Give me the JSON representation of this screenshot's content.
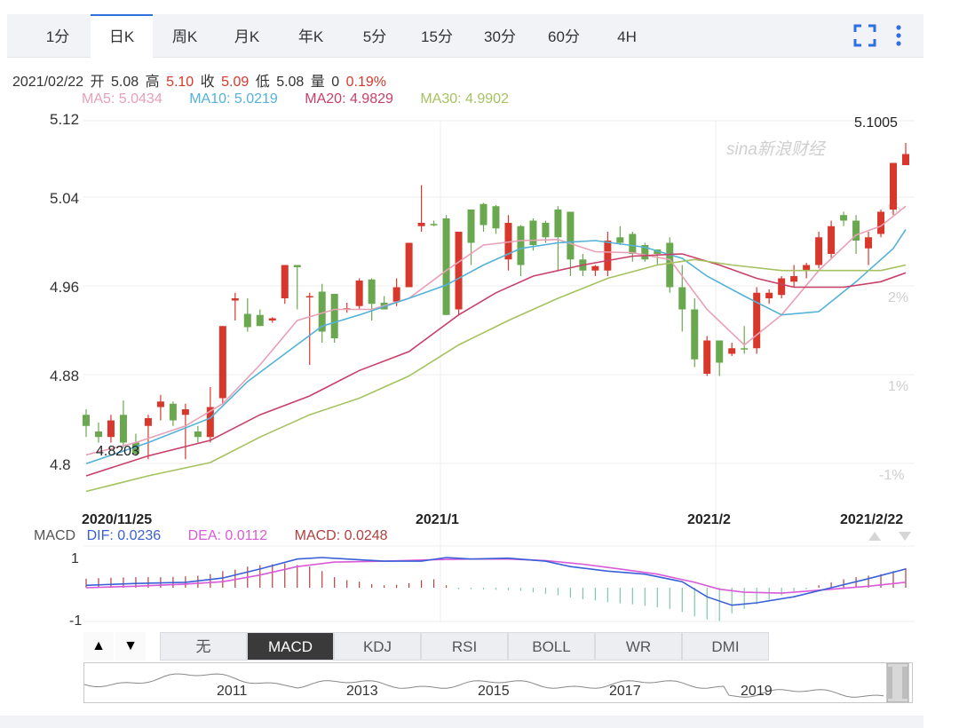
{
  "tabs": [
    "1分",
    "日K",
    "周K",
    "月K",
    "年K",
    "5分",
    "15分",
    "30分",
    "60分",
    "4H"
  ],
  "active_tab": "日K",
  "info": {
    "date": "2021/02/22",
    "open_label": "开",
    "open": "5.08",
    "high_label": "高",
    "high": "5.10",
    "close_label": "收",
    "close": "5.09",
    "low_label": "低",
    "low": "5.08",
    "volume_label": "量",
    "volume": "0",
    "change": "0.19%"
  },
  "ma_legend": [
    {
      "label": "MA5: 5.0434",
      "color": "#e8a0b6"
    },
    {
      "label": "MA10: 5.0219",
      "color": "#53b2d8"
    },
    {
      "label": "MA20: 4.9829",
      "color": "#c8406a"
    },
    {
      "label": "MA30: 4.9902",
      "color": "#a6c260"
    }
  ],
  "macd_legend": {
    "name": "MACD",
    "dif": "DIF: 0.0236",
    "dea": "DEA: 0.0112",
    "macd": "MACD: 0.0248",
    "dif_color": "#3a60d8",
    "dea_color": "#d85ad8",
    "macd_color": "#b04040"
  },
  "watermark": "sina新浪财经",
  "colors": {
    "up": "#d8382c",
    "down": "#6aa84f",
    "accent": "#2f6fde"
  },
  "chart_data": {
    "type": "candlestick",
    "y_ticks": [
      "5.12",
      "5.04",
      "4.96",
      "4.88",
      "4.8"
    ],
    "ylim": [
      4.784,
      5.12
    ],
    "right_ticks": [
      "%",
      "2%",
      "1%",
      "-1%"
    ],
    "x_labels": [
      "2020/11/25",
      "2021/1",
      "2021/2",
      "2021/2/22"
    ],
    "annotations": {
      "max": "5.1005",
      "min": "4.8203"
    },
    "candles": [
      [
        4.855,
        4.845,
        4.86,
        4.835
      ],
      [
        4.84,
        4.835,
        4.848,
        4.83
      ],
      [
        4.835,
        4.85,
        4.855,
        4.83
      ],
      [
        4.855,
        4.83,
        4.868,
        4.825
      ],
      [
        4.83,
        4.82,
        4.838,
        4.818
      ],
      [
        4.845,
        4.852,
        4.855,
        4.815
      ],
      [
        4.862,
        4.867,
        4.873,
        4.85
      ],
      [
        4.865,
        4.85,
        4.867,
        4.845
      ],
      [
        4.855,
        4.86,
        4.865,
        4.815
      ],
      [
        4.84,
        4.835,
        4.845,
        4.83
      ],
      [
        4.835,
        4.862,
        4.88,
        4.83
      ],
      [
        4.87,
        4.935,
        4.935,
        4.865
      ],
      [
        4.958,
        4.96,
        4.965,
        4.94
      ],
      [
        4.946,
        4.934,
        4.96,
        4.93
      ],
      [
        4.945,
        4.935,
        4.95,
        4.935
      ],
      [
        4.94,
        4.942,
        4.943,
        4.938
      ],
      [
        4.96,
        4.99,
        4.99,
        4.955
      ],
      [
        4.99,
        4.988,
        4.99,
        4.95
      ],
      [
        4.962,
        4.962,
        4.965,
        4.9
      ],
      [
        4.966,
        4.93,
        4.973,
        4.92
      ],
      [
        4.964,
        4.924,
        4.964,
        4.92
      ],
      [
        4.95,
        4.951,
        4.956,
        4.947
      ],
      [
        4.953,
        4.976,
        4.978,
        4.95
      ],
      [
        4.977,
        4.955,
        4.978,
        4.94
      ],
      [
        4.956,
        4.95,
        4.962,
        4.95
      ],
      [
        4.957,
        4.97,
        4.978,
        4.953
      ],
      [
        4.97,
        5.01,
        5.01,
        4.97
      ],
      [
        5.025,
        5.028,
        5.062,
        5.02
      ],
      [
        5.027,
        5.026,
        5.03,
        5.025
      ],
      [
        5.032,
        4.945,
        5.035,
        4.945
      ],
      [
        4.95,
        5.02,
        5.02,
        4.945
      ],
      [
        5.04,
        5.01,
        5.04,
        4.99
      ],
      [
        5.045,
        5.026,
        5.046,
        5.02
      ],
      [
        5.043,
        5.023,
        5.044,
        5.018
      ],
      [
        4.995,
        5.028,
        5.035,
        4.985
      ],
      [
        5.025,
        4.99,
        5.026,
        4.98
      ],
      [
        5.03,
        5.008,
        5.032,
        5.003
      ],
      [
        5.028,
        5.015,
        5.03,
        5.01
      ],
      [
        5.04,
        5.015,
        5.043,
        4.985
      ],
      [
        5.038,
        4.995,
        5.038,
        4.98
      ],
      [
        4.995,
        4.985,
        5.0,
        4.98
      ],
      [
        4.985,
        4.989,
        4.99,
        4.98
      ],
      [
        4.985,
        5.012,
        5.02,
        4.98
      ],
      [
        5.015,
        5.01,
        5.025,
        5.008
      ],
      [
        5.018,
        5.0,
        5.02,
        4.993
      ],
      [
        5.008,
        4.995,
        5.01,
        4.993
      ],
      [
        5.004,
        5.0,
        5.004,
        4.99
      ],
      [
        5.01,
        4.97,
        5.015,
        4.965
      ],
      [
        4.97,
        4.95,
        4.99,
        4.93
      ],
      [
        4.95,
        4.905,
        4.96,
        4.898
      ],
      [
        4.892,
        4.922,
        4.926,
        4.89
      ],
      [
        4.922,
        4.902,
        4.922,
        4.89
      ],
      [
        4.91,
        4.915,
        4.92,
        4.908
      ],
      [
        4.915,
        4.914,
        4.935,
        4.91
      ],
      [
        4.915,
        4.965,
        4.97,
        4.91
      ],
      [
        4.96,
        4.965,
        4.968,
        4.955
      ],
      [
        4.963,
        4.978,
        4.98,
        4.96
      ],
      [
        4.975,
        4.98,
        4.99,
        4.97
      ],
      [
        4.985,
        4.99,
        4.992,
        4.978
      ],
      [
        4.99,
        5.015,
        5.02,
        4.987
      ],
      [
        5.0,
        5.025,
        5.03,
        4.995
      ],
      [
        5.035,
        5.03,
        5.038,
        5.025
      ],
      [
        5.03,
        5.012,
        5.035,
        5.0
      ],
      [
        5.005,
        5.015,
        5.02,
        4.99
      ],
      [
        5.018,
        5.038,
        5.04,
        5.015
      ],
      [
        5.04,
        5.082,
        5.082,
        5.035
      ],
      [
        5.08,
        5.09,
        5.1,
        5.08
      ]
    ],
    "series": [
      {
        "name": "MA5",
        "values": [
          [
            0,
            4.819
          ],
          [
            4,
            4.83
          ],
          [
            8,
            4.845
          ],
          [
            11,
            4.865
          ],
          [
            14,
            4.9
          ],
          [
            17,
            4.94
          ],
          [
            20,
            4.95
          ],
          [
            23,
            4.95
          ],
          [
            26,
            4.96
          ],
          [
            29,
            4.985
          ],
          [
            32,
            5.008
          ],
          [
            35,
            5.012
          ],
          [
            38,
            5.013
          ],
          [
            41,
            5.002
          ],
          [
            44,
            5.001
          ],
          [
            47,
            4.995
          ],
          [
            50,
            4.95
          ],
          [
            53,
            4.918
          ],
          [
            56,
            4.945
          ],
          [
            59,
            4.985
          ],
          [
            62,
            5.017
          ],
          [
            64,
            5.025
          ],
          [
            66,
            5.043
          ]
        ]
      },
      {
        "name": "MA10",
        "values": [
          [
            0,
            4.811
          ],
          [
            5,
            4.83
          ],
          [
            10,
            4.852
          ],
          [
            13,
            4.885
          ],
          [
            16,
            4.91
          ],
          [
            19,
            4.935
          ],
          [
            22,
            4.945
          ],
          [
            26,
            4.96
          ],
          [
            29,
            4.972
          ],
          [
            32,
            4.99
          ],
          [
            35,
            5.005
          ],
          [
            38,
            5.01
          ],
          [
            41,
            5.012
          ],
          [
            45,
            5.006
          ],
          [
            48,
            4.996
          ],
          [
            50,
            4.98
          ],
          [
            53,
            4.962
          ],
          [
            56,
            4.945
          ],
          [
            59,
            4.948
          ],
          [
            62,
            4.975
          ],
          [
            65,
            5.005
          ],
          [
            66,
            5.022
          ]
        ]
      },
      {
        "name": "MA20",
        "values": [
          [
            0,
            4.8
          ],
          [
            5,
            4.818
          ],
          [
            10,
            4.832
          ],
          [
            14,
            4.855
          ],
          [
            18,
            4.872
          ],
          [
            22,
            4.895
          ],
          [
            26,
            4.912
          ],
          [
            30,
            4.945
          ],
          [
            33,
            4.965
          ],
          [
            36,
            4.98
          ],
          [
            40,
            4.99
          ],
          [
            44,
            4.998
          ],
          [
            48,
            5.0
          ],
          [
            51,
            4.99
          ],
          [
            54,
            4.978
          ],
          [
            57,
            4.97
          ],
          [
            61,
            4.97
          ],
          [
            64,
            4.975
          ],
          [
            66,
            4.983
          ]
        ]
      },
      {
        "name": "MA30",
        "values": [
          [
            0,
            4.786
          ],
          [
            5,
            4.8
          ],
          [
            10,
            4.812
          ],
          [
            14,
            4.835
          ],
          [
            18,
            4.855
          ],
          [
            22,
            4.87
          ],
          [
            26,
            4.89
          ],
          [
            30,
            4.918
          ],
          [
            34,
            4.94
          ],
          [
            38,
            4.96
          ],
          [
            42,
            4.978
          ],
          [
            46,
            4.99
          ],
          [
            49,
            4.995
          ],
          [
            52,
            4.99
          ],
          [
            56,
            4.985
          ],
          [
            60,
            4.985
          ],
          [
            64,
            4.985
          ],
          [
            66,
            4.99
          ]
        ]
      }
    ],
    "macd": {
      "y_ticks": [
        "1",
        "-1"
      ],
      "ylim": [
        -1.2,
        1.35
      ],
      "dif": [
        [
          0,
          0.08
        ],
        [
          4,
          0.14
        ],
        [
          8,
          0.18
        ],
        [
          11,
          0.32
        ],
        [
          14,
          0.62
        ],
        [
          17,
          0.95
        ],
        [
          19,
          1.0
        ],
        [
          21,
          0.95
        ],
        [
          24,
          0.88
        ],
        [
          27,
          0.88
        ],
        [
          29,
          1.0
        ],
        [
          31,
          0.95
        ],
        [
          34,
          0.98
        ],
        [
          37,
          0.88
        ],
        [
          39,
          0.7
        ],
        [
          42,
          0.55
        ],
        [
          45,
          0.45
        ],
        [
          48,
          0.2
        ],
        [
          50,
          -0.3
        ],
        [
          52,
          -0.58
        ],
        [
          54,
          -0.5
        ],
        [
          57,
          -0.3
        ],
        [
          60,
          0.0
        ],
        [
          63,
          0.3
        ],
        [
          66,
          0.62
        ]
      ],
      "dea": [
        [
          0,
          0.0
        ],
        [
          4,
          0.05
        ],
        [
          8,
          0.12
        ],
        [
          11,
          0.2
        ],
        [
          14,
          0.42
        ],
        [
          17,
          0.7
        ],
        [
          20,
          0.85
        ],
        [
          24,
          0.88
        ],
        [
          28,
          0.93
        ],
        [
          31,
          0.95
        ],
        [
          34,
          0.95
        ],
        [
          37,
          0.9
        ],
        [
          40,
          0.78
        ],
        [
          43,
          0.62
        ],
        [
          46,
          0.45
        ],
        [
          49,
          0.18
        ],
        [
          51,
          -0.05
        ],
        [
          53,
          -0.15
        ],
        [
          56,
          -0.18
        ],
        [
          60,
          -0.05
        ],
        [
          63,
          0.05
        ],
        [
          66,
          0.18
        ]
      ],
      "hist": [
        0.3,
        0.32,
        0.33,
        0.34,
        0.35,
        0.35,
        0.35,
        0.36,
        0.38,
        0.4,
        0.45,
        0.55,
        0.6,
        0.7,
        0.75,
        0.78,
        0.8,
        0.75,
        0.7,
        0.55,
        0.35,
        0.25,
        0.2,
        0.12,
        0.08,
        0.1,
        0.15,
        0.25,
        0.28,
        0.08,
        -0.05,
        -0.05,
        -0.06,
        -0.07,
        -0.08,
        -0.1,
        -0.15,
        -0.2,
        -0.25,
        -0.32,
        -0.38,
        -0.42,
        -0.48,
        -0.52,
        -0.55,
        -0.6,
        -0.65,
        -0.7,
        -0.8,
        -0.95,
        -1.05,
        -1.1,
        -0.85,
        -0.7,
        -0.55,
        -0.4,
        -0.25,
        -0.12,
        -0.05,
        0.08,
        0.18,
        0.28,
        0.35,
        0.4,
        0.45,
        0.55,
        0.65
      ]
    }
  },
  "indicator_tabs": [
    "无",
    "MACD",
    "KDJ",
    "RSI",
    "BOLL",
    "WR",
    "DMI"
  ],
  "active_indicator": "MACD",
  "navigator": {
    "labels": [
      "2011",
      "2013",
      "2015",
      "2017",
      "2019"
    ]
  }
}
